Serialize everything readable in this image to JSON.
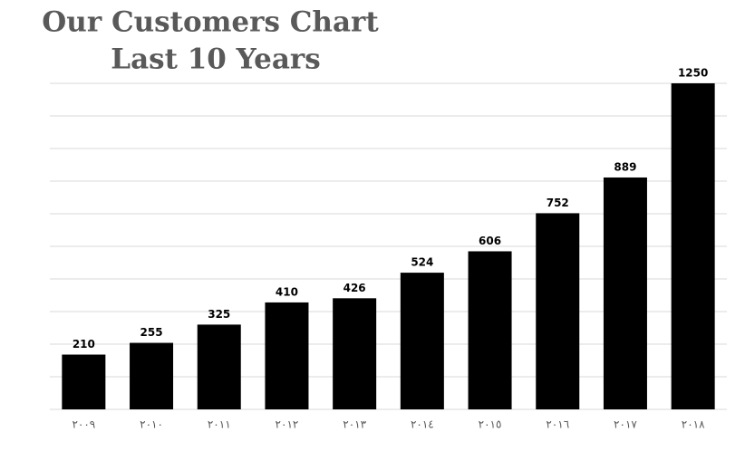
{
  "chart_data": {
    "type": "bar",
    "title": "Our Customers Chart",
    "subtitle": "Last 10 Years",
    "categories": [
      "٢٠٠٩",
      "٢٠١٠",
      "٢٠١١",
      "٢٠١٢",
      "٢٠١٣",
      "٢٠١٤",
      "٢٠١٥",
      "٢٠١٦",
      "٢٠١٧",
      "٢٠١٨"
    ],
    "values": [
      210,
      255,
      325,
      410,
      426,
      524,
      606,
      752,
      889,
      1250
    ],
    "color": "#000000",
    "ylim": [
      0,
      1250
    ],
    "yticks": [
      0,
      125,
      250,
      375,
      500,
      625,
      750,
      875,
      1000,
      1125,
      1250
    ],
    "grid": true
  }
}
